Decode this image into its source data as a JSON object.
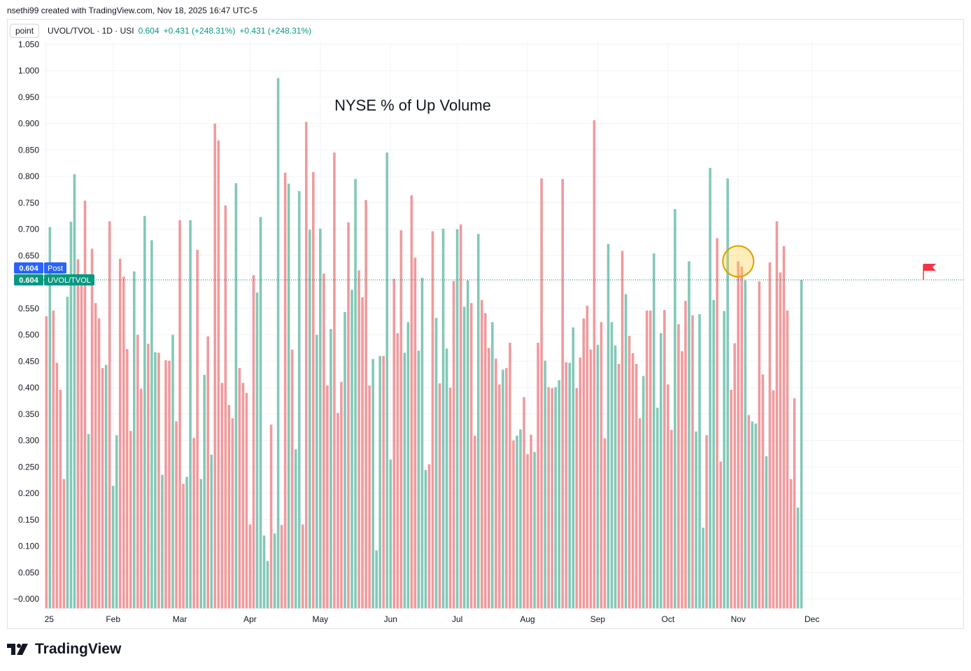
{
  "header": {
    "attribution": "nsethi99 created with TradingView.com, Nov 18, 2025 16:47 UTC-5"
  },
  "legend": {
    "mode": "point",
    "symbol": "UVOL/TVOL · 1D · USI",
    "last": "0.604",
    "change": "+0.431 (+248.31%)",
    "change2": "+0.431 (+248.31%)"
  },
  "badges": {
    "post_value": "0.604",
    "post_label": "Post",
    "series_value": "0.604",
    "series_label": "UVOL/TVOL"
  },
  "colors": {
    "up": "#83c8b8",
    "down": "#f09a9d",
    "accent": "#089981",
    "post": "#2962ff",
    "flag": "#f23645"
  },
  "footer": {
    "brand": "TradingView"
  },
  "chart_data": {
    "type": "bar",
    "title": "NYSE % of Up Volume",
    "ylim": [
      -0.02,
      1.05
    ],
    "yticks": [
      1.05,
      1.0,
      0.95,
      0.9,
      0.85,
      0.8,
      0.75,
      0.7,
      0.65,
      0.6,
      0.55,
      0.5,
      0.45,
      0.4,
      0.35,
      0.3,
      0.25,
      0.2,
      0.15,
      0.1,
      0.05,
      -0.0
    ],
    "ytick_labels": [
      "1.050",
      "1.000",
      "0.950",
      "0.900",
      "0.850",
      "0.800",
      "0.750",
      "0.700",
      "0.650",
      "0.600",
      "0.550",
      "0.500",
      "0.450",
      "0.400",
      "0.350",
      "0.300",
      "0.250",
      "0.200",
      "0.150",
      "0.100",
      "0.050",
      "−0.000"
    ],
    "x_labels": [
      "25",
      "Feb",
      "Mar",
      "Apr",
      "May",
      "Jun",
      "Jul",
      "Aug",
      "Sep",
      "Oct",
      "Nov",
      "Dec"
    ],
    "x_label_bar_index": [
      0,
      19,
      38,
      58,
      78,
      98,
      117,
      137,
      157,
      177,
      197,
      218
    ],
    "reference_value": 0.604,
    "highlight_bar_index": 197,
    "values": [
      0.535,
      0.704,
      0.546,
      0.447,
      0.396,
      0.227,
      0.572,
      0.714,
      0.804,
      0.643,
      0.615,
      0.754,
      0.312,
      0.663,
      0.56,
      0.531,
      0.437,
      0.443,
      0.715,
      0.214,
      0.31,
      0.644,
      0.61,
      0.473,
      0.318,
      0.62,
      0.5,
      0.398,
      0.725,
      0.483,
      0.679,
      0.467,
      0.466,
      0.235,
      0.452,
      0.451,
      0.5,
      0.336,
      0.717,
      0.218,
      0.231,
      0.717,
      0.305,
      0.661,
      0.227,
      0.424,
      0.497,
      0.273,
      0.9,
      0.868,
      0.409,
      0.745,
      0.367,
      0.342,
      0.787,
      0.437,
      0.409,
      0.39,
      0.141,
      0.613,
      0.58,
      0.723,
      0.12,
      0.072,
      0.33,
      0.124,
      0.986,
      0.14,
      0.807,
      0.786,
      0.472,
      0.283,
      0.772,
      0.141,
      0.903,
      0.699,
      0.808,
      0.5,
      0.701,
      0.616,
      0.404,
      0.511,
      0.845,
      0.352,
      0.411,
      0.543,
      0.713,
      0.585,
      0.795,
      0.622,
      0.571,
      0.755,
      0.404,
      0.454,
      0.092,
      0.46,
      0.46,
      0.845,
      0.264,
      0.606,
      0.503,
      0.698,
      0.466,
      0.524,
      0.764,
      0.646,
      0.47,
      0.608,
      0.244,
      0.255,
      0.696,
      0.532,
      0.408,
      0.701,
      0.474,
      0.4,
      0.602,
      0.7,
      0.709,
      0.553,
      0.603,
      0.56,
      0.309,
      0.691,
      0.566,
      0.541,
      0.475,
      0.524,
      0.455,
      0.406,
      0.434,
      0.437,
      0.485,
      0.3,
      0.309,
      0.321,
      0.382,
      0.274,
      0.311,
      0.278,
      0.485,
      0.796,
      0.451,
      0.401,
      0.399,
      0.401,
      0.414,
      0.795,
      0.448,
      0.447,
      0.514,
      0.399,
      0.457,
      0.531,
      0.555,
      0.472,
      0.906,
      0.481,
      0.524,
      0.304,
      0.672,
      0.524,
      0.48,
      0.445,
      0.659,
      0.577,
      0.498,
      0.465,
      0.445,
      0.342,
      0.422,
      0.546,
      0.546,
      0.654,
      0.362,
      0.503,
      0.547,
      0.406,
      0.32,
      0.738,
      0.52,
      0.469,
      0.564,
      0.639,
      0.537,
      0.317,
      0.539,
      0.135,
      0.31,
      0.816,
      0.566,
      0.683,
      0.26,
      0.545,
      0.796,
      0.396,
      0.484,
      0.639,
      0.629,
      0.603,
      0.348,
      0.336,
      0.332,
      0.601,
      0.425,
      0.27,
      0.637,
      0.395,
      0.715,
      0.618,
      0.668,
      0.546,
      0.227,
      0.38,
      0.173,
      0.604
    ],
    "directions": "dudddduuudddudddduduuddddudduduududduddduudduududddddduddddduuuuduudduduudduduudduddduduudddduuuduuddduudduuudduduudduduuddudddudduddduuddduddudduudduuddddddudduuudduddddudduuuddduddduduuuduudduudddduduuddudddddddduuduuddududu"
  }
}
